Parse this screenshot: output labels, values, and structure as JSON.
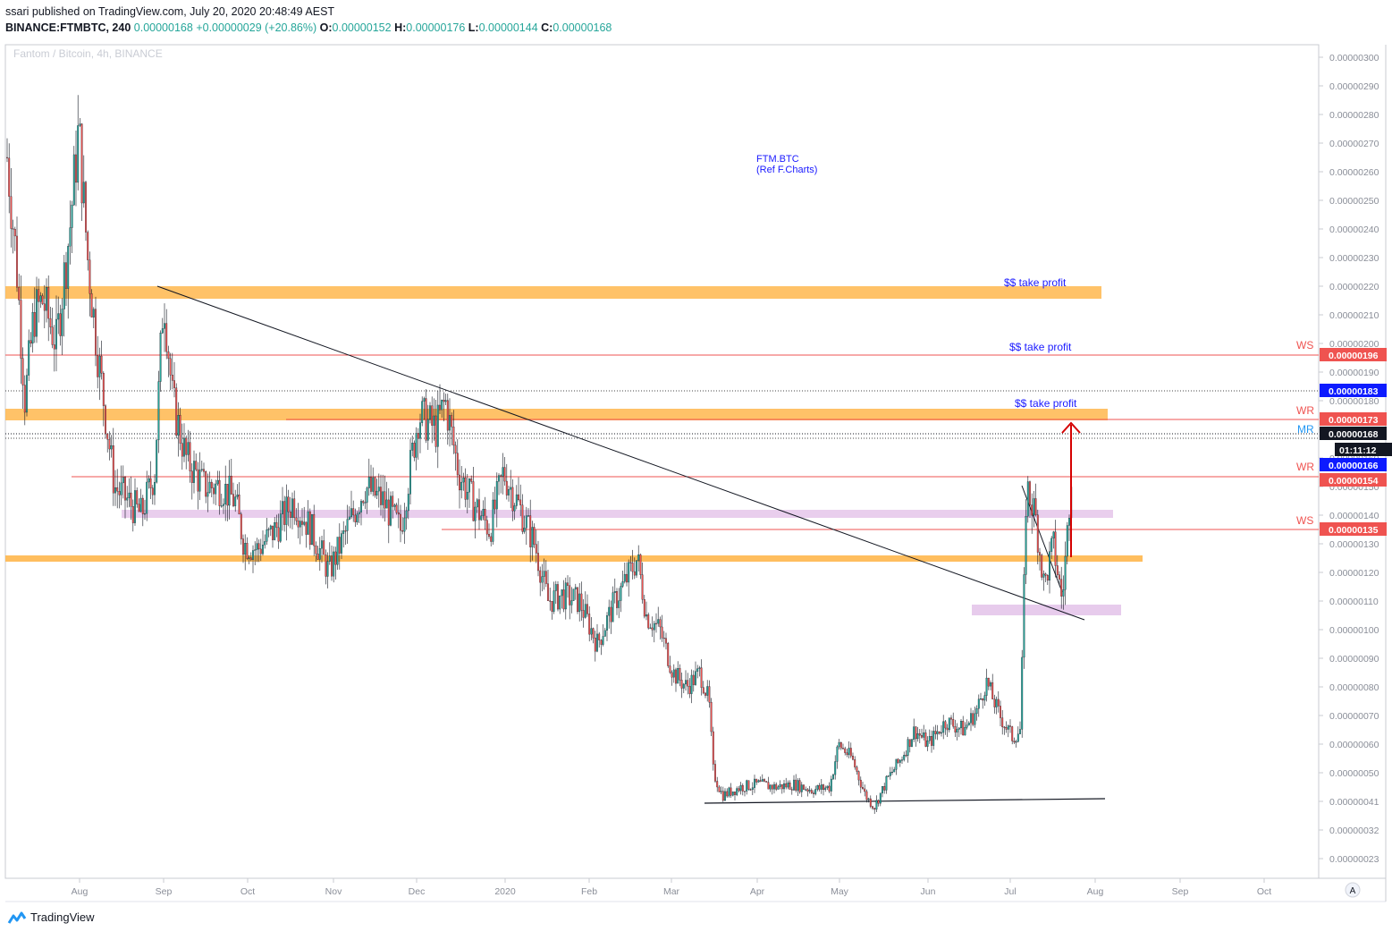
{
  "header": {
    "published": "ssari published on TradingView.com, July 20, 2020 20:48:49 AEST",
    "symbol": "BINANCE:FTMBTC, 240",
    "last": "0.00000168",
    "change": "+0.00000029 (+20.86%)",
    "o_label": "O:",
    "o_value": "0.00000152",
    "h_label": "H:",
    "h_value": "0.00000176",
    "l_label": "L:",
    "l_value": "0.00000144",
    "c_label": "C:",
    "c_value": "0.00000168"
  },
  "watermark": "Fantom / Bitcoin, 4h, BINANCE",
  "footer": {
    "brand": "TradingView",
    "auto_button": "A"
  },
  "colors": {
    "up": "#26a69a",
    "down": "#ef5350",
    "orange_zone": "#ffb74d",
    "purple_zone": "#e1bee7",
    "resistance_line": "#ef5350",
    "label_blue": "#1a1aff",
    "tag_red": "#ef5350",
    "tag_blue": "#0d1bff",
    "tag_black": "#131722"
  },
  "chart_data": {
    "type": "candlestick",
    "title": "Fantom / Bitcoin, 4h, BINANCE",
    "annotations": {
      "main": [
        "FTM.BTC",
        "(Ref F.Charts)"
      ],
      "take_profit": [
        "$$ take profit",
        "$$ take profit",
        "$$ take profit"
      ],
      "levels": [
        "WS",
        "WR",
        "MR",
        "WR",
        "WS"
      ]
    },
    "x_ticks": [
      "Aug",
      "Sep",
      "Oct",
      "Nov",
      "Dec",
      "2020",
      "Feb",
      "Mar",
      "Apr",
      "May",
      "Jun",
      "Jul",
      "Aug",
      "Sep",
      "Oct"
    ],
    "y_ticks": [
      "0.00000300",
      "0.00000290",
      "0.00000280",
      "0.00000270",
      "0.00000260",
      "0.00000250",
      "0.00000240",
      "0.00000230",
      "0.00000220",
      "0.00000210",
      "0.00000200",
      "0.00000190",
      "0.00000180",
      "0.00000170",
      "0.00000160",
      "0.00000150",
      "0.00000140",
      "0.00000130",
      "0.00000120",
      "0.00000110",
      "0.00000100",
      "0.00000090",
      "0.00000080",
      "0.00000070",
      "0.00000060",
      "0.00000050",
      "0.00000041",
      "0.00000032",
      "0.00000023"
    ],
    "price_tags": [
      {
        "text": "0.00000196",
        "color": "#ef5350"
      },
      {
        "text": "0.00000183",
        "color": "#0d1bff"
      },
      {
        "text": "0.00000173",
        "color": "#ef5350"
      },
      {
        "text": "0.00000168",
        "color": "#131722"
      },
      {
        "text": "01:11:12",
        "color": "#131722"
      },
      {
        "text": "0.00000166",
        "color": "#0d1bff"
      },
      {
        "text": "0.00000154",
        "color": "#ef5350"
      },
      {
        "text": "0.00000135",
        "color": "#ef5350"
      }
    ],
    "price_path_approx": [
      [
        0,
        2.65
      ],
      [
        10,
        2.3
      ],
      [
        20,
        1.8
      ],
      [
        30,
        2.1
      ],
      [
        40,
        2.15
      ],
      [
        55,
        2.0
      ],
      [
        70,
        2.4
      ],
      [
        80,
        2.75
      ],
      [
        90,
        2.3
      ],
      [
        100,
        2.0
      ],
      [
        110,
        1.75
      ],
      [
        120,
        1.5
      ],
      [
        135,
        1.45
      ],
      [
        150,
        1.4
      ],
      [
        165,
        1.55
      ],
      [
        175,
        2.18
      ],
      [
        185,
        1.8
      ],
      [
        200,
        1.6
      ],
      [
        220,
        1.5
      ],
      [
        240,
        1.5
      ],
      [
        255,
        1.45
      ],
      [
        265,
        1.3
      ],
      [
        280,
        1.28
      ],
      [
        300,
        1.35
      ],
      [
        320,
        1.45
      ],
      [
        340,
        1.35
      ],
      [
        360,
        1.2
      ],
      [
        380,
        1.35
      ],
      [
        400,
        1.5
      ],
      [
        420,
        1.45
      ],
      [
        440,
        1.35
      ],
      [
        460,
        1.75
      ],
      [
        480,
        1.7
      ],
      [
        490,
        1.8
      ],
      [
        505,
        1.55
      ],
      [
        520,
        1.45
      ],
      [
        540,
        1.35
      ],
      [
        555,
        1.55
      ],
      [
        570,
        1.45
      ],
      [
        590,
        1.3
      ],
      [
        605,
        1.1
      ],
      [
        620,
        1.12
      ],
      [
        640,
        1.1
      ],
      [
        660,
        0.95
      ],
      [
        680,
        1.1
      ],
      [
        705,
        1.25
      ],
      [
        715,
        1.05
      ],
      [
        730,
        1.0
      ],
      [
        745,
        0.85
      ],
      [
        760,
        0.8
      ],
      [
        775,
        0.85
      ],
      [
        785,
        0.75
      ],
      [
        790,
        0.5
      ],
      [
        800,
        0.42
      ],
      [
        820,
        0.45
      ],
      [
        840,
        0.46
      ],
      [
        860,
        0.45
      ],
      [
        880,
        0.46
      ],
      [
        900,
        0.44
      ],
      [
        920,
        0.45
      ],
      [
        930,
        0.6
      ],
      [
        945,
        0.55
      ],
      [
        960,
        0.42
      ],
      [
        970,
        0.38
      ],
      [
        985,
        0.48
      ],
      [
        1000,
        0.55
      ],
      [
        1015,
        0.65
      ],
      [
        1030,
        0.6
      ],
      [
        1050,
        0.68
      ],
      [
        1070,
        0.65
      ],
      [
        1085,
        0.72
      ],
      [
        1095,
        0.82
      ],
      [
        1110,
        0.7
      ],
      [
        1125,
        0.62
      ],
      [
        1133,
        0.65
      ],
      [
        1136,
        0.95
      ],
      [
        1140,
        1.5
      ],
      [
        1150,
        1.4
      ],
      [
        1160,
        1.15
      ],
      [
        1170,
        1.3
      ],
      [
        1180,
        1.1
      ],
      [
        1185,
        1.3
      ],
      [
        1190,
        1.55
      ],
      [
        1192,
        1.68
      ]
    ]
  }
}
